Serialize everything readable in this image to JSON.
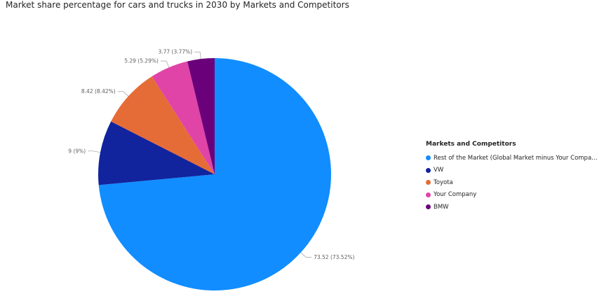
{
  "title": "Market share percentage for cars and trucks in 2030 by Markets and Competitors",
  "chart_data": {
    "type": "pie",
    "legend_title": "Markets and Competitors",
    "legend_position": "right",
    "slices": [
      {
        "name": "Rest of the Market (Global Market minus Your Company, B...",
        "value": 73.52,
        "label": "73.52 (73.52%)",
        "color": "#118DFF"
      },
      {
        "name": "VW",
        "value": 9,
        "label": "9 (9%)",
        "color": "#12239E"
      },
      {
        "name": "Toyota",
        "value": 8.42,
        "label": "8.42 (8.42%)",
        "color": "#E66C37"
      },
      {
        "name": "Your Company",
        "value": 5.29,
        "label": "5.29 (5.29%)",
        "color": "#E044A7"
      },
      {
        "name": "BMW",
        "value": 3.77,
        "label": "3.77 (3.77%)",
        "color": "#6B007B"
      }
    ]
  }
}
